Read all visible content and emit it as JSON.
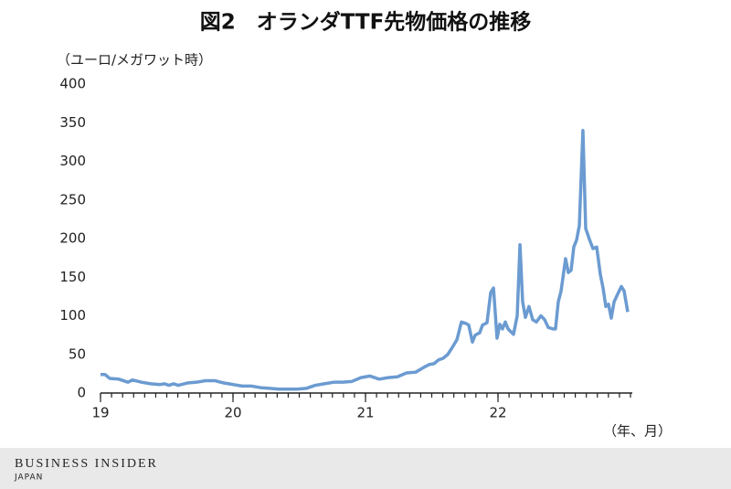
{
  "chart_data": {
    "type": "line",
    "title": "図2　オランダTTF先物価格の推移",
    "y_axis_label": "（ユーロ/メガワット時）",
    "x_axis_label": "（年、月）",
    "source": "BUSINESS INSIDER",
    "source_sub": "JAPAN",
    "xlim": [
      2019,
      2023
    ],
    "xticks": [
      {
        "value": 2019,
        "label": "19"
      },
      {
        "value": 2020,
        "label": "20"
      },
      {
        "value": 2021,
        "label": "21"
      },
      {
        "value": 2022,
        "label": "22"
      }
    ],
    "minor_ticks_per_year": 12,
    "ylim": [
      0,
      400
    ],
    "yticks": [
      0,
      50,
      100,
      150,
      200,
      250,
      300,
      350,
      400
    ],
    "grid": false,
    "x": [
      2019,
      2019.034,
      2019.069,
      2019.138,
      2019.207,
      2019.241,
      2019.31,
      2019.379,
      2019.448,
      2019.483,
      2019.517,
      2019.552,
      2019.586,
      2019.655,
      2019.724,
      2019.793,
      2019.862,
      2019.931,
      2020,
      2020.069,
      2020.138,
      2020.207,
      2020.276,
      2020.345,
      2020.414,
      2020.483,
      2020.552,
      2020.621,
      2020.69,
      2020.759,
      2020.828,
      2020.897,
      2020.966,
      2021.034,
      2021.103,
      2021.172,
      2021.241,
      2021.31,
      2021.379,
      2021.448,
      2021.483,
      2021.517,
      2021.552,
      2021.586,
      2021.621,
      2021.655,
      2021.69,
      2021.724,
      2021.759,
      2021.779,
      2021.807,
      2021.828,
      2021.862,
      2021.883,
      2021.917,
      2021.945,
      2021.966,
      2021.993,
      2022.014,
      2022.034,
      2022.055,
      2022.076,
      2022.117,
      2022.145,
      2022.166,
      2022.186,
      2022.207,
      2022.234,
      2022.262,
      2022.29,
      2022.324,
      2022.352,
      2022.379,
      2022.414,
      2022.434,
      2022.455,
      2022.476,
      2022.51,
      2022.531,
      2022.552,
      2022.572,
      2022.593,
      2022.614,
      2022.641,
      2022.662,
      2022.69,
      2022.717,
      2022.745,
      2022.772,
      2022.793,
      2022.814,
      2022.834,
      2022.855,
      2022.876,
      2022.903,
      2022.931,
      2022.952,
      2022.979
    ],
    "series": [
      {
        "name": "TTF",
        "color": "#6b9bd1",
        "values": [
          24,
          24,
          19,
          18,
          14,
          17,
          14,
          12,
          11,
          12,
          10,
          12,
          10,
          13,
          14,
          16,
          16,
          13,
          11,
          9,
          9,
          7,
          6,
          5,
          5,
          5,
          6,
          10,
          12,
          14,
          14,
          15,
          20,
          22,
          18,
          20,
          21,
          26,
          27,
          34,
          37,
          38,
          43,
          45,
          50,
          59,
          69,
          92,
          90,
          88,
          66,
          75,
          78,
          88,
          91,
          130,
          136,
          71,
          89,
          83,
          92,
          83,
          76,
          100,
          192,
          118,
          98,
          112,
          95,
          92,
          100,
          95,
          85,
          83,
          83,
          118,
          132,
          174,
          156,
          159,
          189,
          198,
          217,
          340,
          213,
          199,
          187,
          189,
          154,
          136,
          112,
          115,
          97,
          118,
          128,
          138,
          132,
          105
        ]
      }
    ]
  }
}
